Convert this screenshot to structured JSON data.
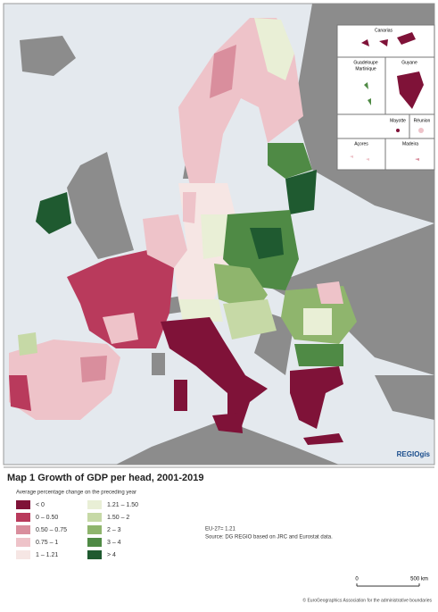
{
  "map": {
    "insets": {
      "canarias": "Canarias",
      "guadeloupe": "Guadeloupe",
      "martinique": "Martinique",
      "guyane": "Guyane",
      "mayotte": "Mayotte",
      "reunion": "Réunion",
      "acores": "Açores",
      "madeira": "Madeira"
    },
    "logo": "REGIOgis"
  },
  "panel": {
    "title": "Map 1 Growth of GDP per head, 2001-2019",
    "subtitle": "Average percentage change on the preceding year",
    "legend": [
      {
        "label": "< 0",
        "color": "#7f1238"
      },
      {
        "label": "0 – 0.50",
        "color": "#b93a5c"
      },
      {
        "label": "0.50 – 0.75",
        "color": "#d98e9d"
      },
      {
        "label": "0.75 – 1",
        "color": "#eec3c9"
      },
      {
        "label": "1 – 1.21",
        "color": "#f6e6e4"
      },
      {
        "label": "1.21 – 1.50",
        "color": "#e9efd6"
      },
      {
        "label": "1.50 – 2",
        "color": "#c6d9a6"
      },
      {
        "label": "2 – 3",
        "color": "#8fb56d"
      },
      {
        "label": "3 – 4",
        "color": "#4f8a45"
      },
      {
        "label": "> 4",
        "color": "#1f5a30"
      }
    ],
    "note": "EU-27= 1.21",
    "source": "Source: DG REGIO based on JRC and Eurostat data.",
    "scale_start": "0",
    "scale_end": "500 km",
    "copyright": "© EuroGeographics Association for the administrative boundaries"
  }
}
